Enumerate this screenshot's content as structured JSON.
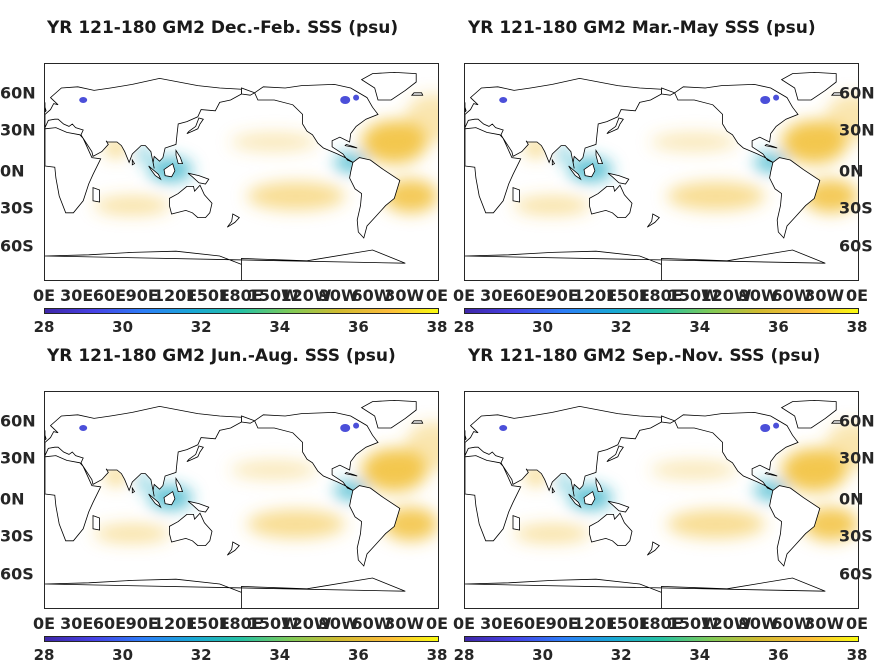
{
  "panels": [
    {
      "title": "YR 121-180 GM2 Dec.-Feb. SSS (psu)"
    },
    {
      "title": "YR 121-180 GM2 Mar.-May SSS (psu)"
    },
    {
      "title": "YR 121-180 GM2 Jun.-Aug. SSS (psu)"
    },
    {
      "title": "YR 121-180 GM2 Sep.-Nov. SSS (psu)"
    }
  ],
  "lat_ticks": [
    "60N",
    "30N",
    "0N",
    "30S",
    "60S"
  ],
  "lon_ticks": [
    "0E",
    "30E",
    "60E",
    "90E",
    "120E",
    "150E",
    "180E",
    "150W",
    "120W",
    "90W",
    "60W",
    "30W",
    "0E"
  ],
  "colorbar": {
    "ticks": [
      "28",
      "30",
      "32",
      "34",
      "36",
      "38"
    ],
    "min": 28,
    "max": 38,
    "colormap": [
      "#3e26a8",
      "#4742e6",
      "#2d7ef8",
      "#1aa8d6",
      "#27c2a4",
      "#80cb58",
      "#d2bb30",
      "#fdbd3c",
      "#f9fb0e"
    ]
  },
  "colors": {
    "land": "#ffffff",
    "ocean_base": "#5cc18a",
    "arctic": "#4b4fd9",
    "subtropical_high": "#f2c13a",
    "coastline": "#000000"
  }
}
